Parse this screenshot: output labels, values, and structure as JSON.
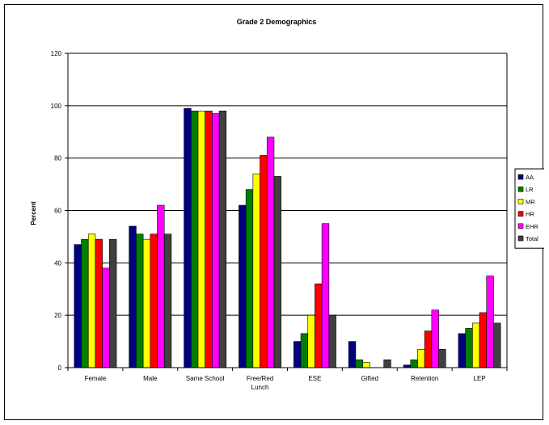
{
  "chart_data": {
    "type": "bar",
    "title": "Grade 2 Demographics",
    "xlabel": "",
    "ylabel": "Percent",
    "ylim": [
      0,
      120
    ],
    "yticks": [
      0,
      20,
      40,
      60,
      80,
      100,
      120
    ],
    "grid": true,
    "legend_position": "right",
    "categories": [
      "Female",
      "Male",
      "Same School",
      "Free/Red Lunch",
      "ESE",
      "Gifted",
      "Retention",
      "LEP"
    ],
    "category_labels": [
      [
        "Female"
      ],
      [
        "Male"
      ],
      [
        "Same School"
      ],
      [
        "Free/Red",
        "Lunch"
      ],
      [
        "ESE"
      ],
      [
        "Gifted"
      ],
      [
        "Retention"
      ],
      [
        "LEP"
      ]
    ],
    "series": [
      {
        "name": "AA",
        "color": "#000080",
        "values": [
          47,
          54,
          99,
          62,
          10,
          10,
          1,
          13
        ]
      },
      {
        "name": "LR",
        "color": "#008000",
        "values": [
          49,
          51,
          98,
          68,
          13,
          3,
          3,
          15
        ]
      },
      {
        "name": "MR",
        "color": "#ffff00",
        "values": [
          51,
          49,
          98,
          74,
          20,
          2,
          7,
          17
        ]
      },
      {
        "name": "HR",
        "color": "#ff0000",
        "values": [
          49,
          51,
          98,
          81,
          32,
          0,
          14,
          21
        ]
      },
      {
        "name": "EHR",
        "color": "#ff00ff",
        "values": [
          38,
          62,
          97,
          88,
          55,
          0,
          22,
          35
        ]
      },
      {
        "name": "Total",
        "color": "#404040",
        "values": [
          49,
          51,
          98,
          73,
          20,
          3,
          7,
          17
        ]
      }
    ]
  }
}
